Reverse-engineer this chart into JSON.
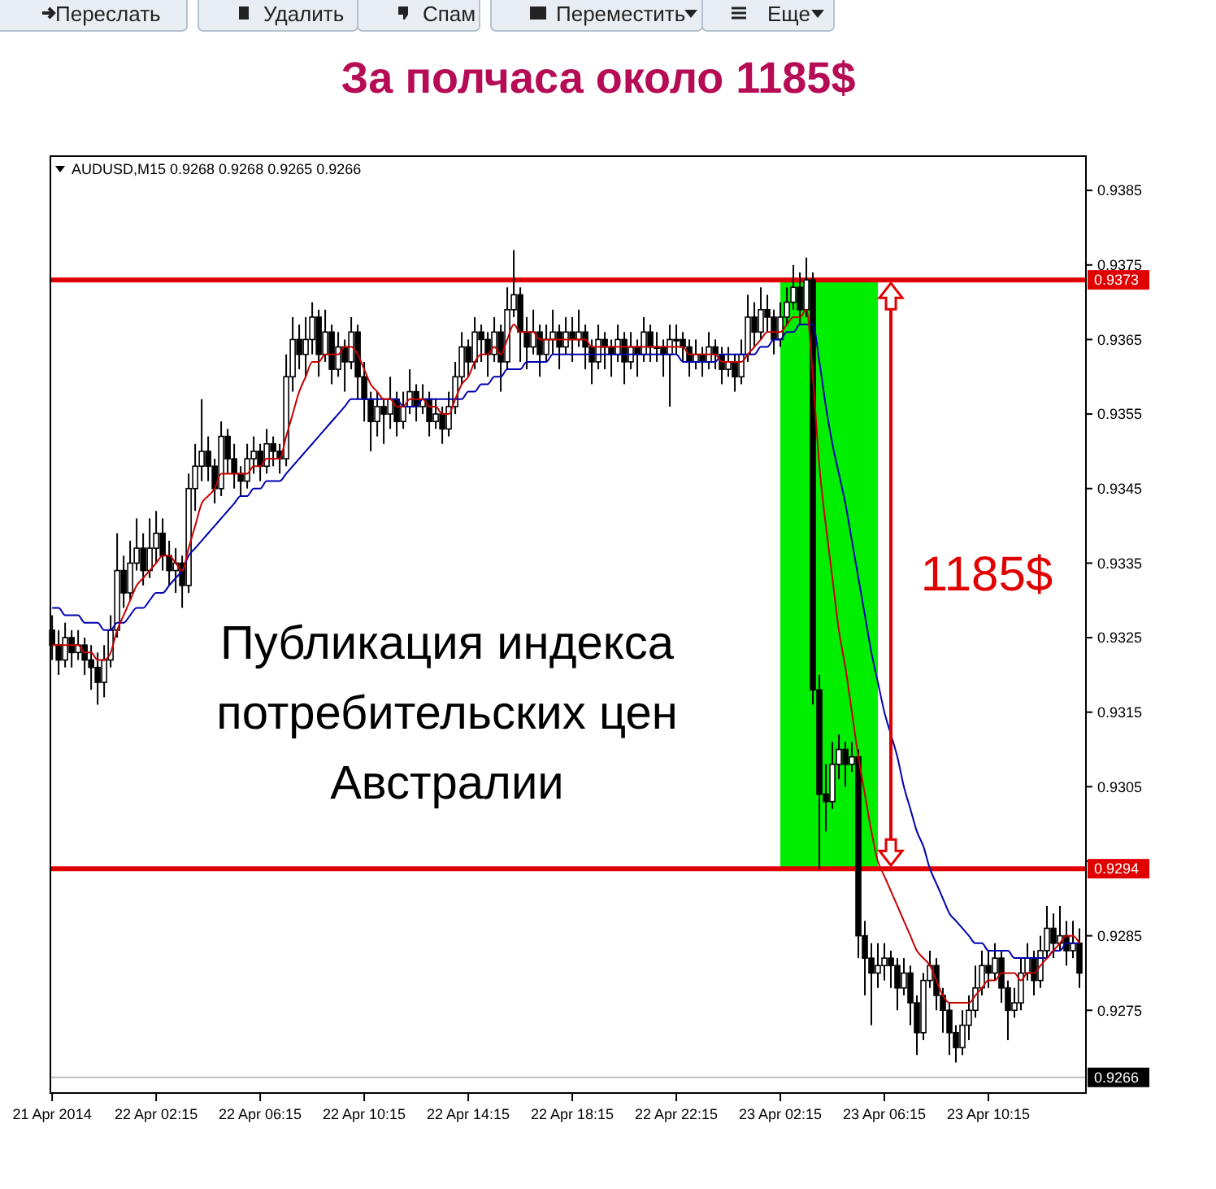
{
  "chart_data": {
    "type": "candlestick",
    "title": "За полчаса около 1185$",
    "annotations": [
      "Переслать",
      "Удалить",
      "Спам",
      "Переместить",
      "Еще",
      "AUDUSD,M15  0.9268 0.9268 0.9265 0.9266",
      "Публикация индекса\nпотребительских цен\nАвстралии",
      "1185$"
    ],
    "x": [
      "2014-04-21T22:15",
      "2014-04-21T22:30",
      "2014-04-21T22:45",
      "2014-04-21T23:00",
      "2014-04-21T23:15",
      "2014-04-21T23:30",
      "2014-04-21T23:45",
      "2014-04-22T00:00",
      "2014-04-22T00:15",
      "2014-04-22T00:30",
      "2014-04-22T00:45",
      "2014-04-22T01:00",
      "2014-04-22T01:15",
      "2014-04-22T01:30",
      "2014-04-22T01:45",
      "2014-04-22T02:00",
      "2014-04-22T02:15",
      "2014-04-22T02:30",
      "2014-04-22T02:45",
      "2014-04-22T03:00",
      "2014-04-22T03:15",
      "2014-04-22T03:30",
      "2014-04-22T03:45",
      "2014-04-22T04:00",
      "2014-04-22T04:15",
      "2014-04-22T04:30",
      "2014-04-22T04:45",
      "2014-04-22T05:00",
      "2014-04-22T05:15",
      "2014-04-22T05:30",
      "2014-04-22T05:45",
      "2014-04-22T06:00",
      "2014-04-22T06:15",
      "2014-04-22T06:30",
      "2014-04-22T06:45",
      "2014-04-22T07:00",
      "2014-04-22T07:15",
      "2014-04-22T07:30",
      "2014-04-22T07:45",
      "2014-04-22T08:00",
      "2014-04-22T08:15",
      "2014-04-22T08:30",
      "2014-04-22T08:45",
      "2014-04-22T09:00",
      "2014-04-22T09:15",
      "2014-04-22T09:30",
      "2014-04-22T09:45",
      "2014-04-22T10:00",
      "2014-04-22T10:15",
      "2014-04-22T10:30",
      "2014-04-22T10:45",
      "2014-04-22T11:00",
      "2014-04-22T11:15",
      "2014-04-22T11:30",
      "2014-04-22T11:45",
      "2014-04-22T12:00",
      "2014-04-22T12:15",
      "2014-04-22T12:30",
      "2014-04-22T12:45",
      "2014-04-22T13:00",
      "2014-04-22T13:15",
      "2014-04-22T13:30",
      "2014-04-22T13:45",
      "2014-04-22T14:00",
      "2014-04-22T14:15",
      "2014-04-22T14:30",
      "2014-04-22T14:45",
      "2014-04-22T15:00",
      "2014-04-22T15:15",
      "2014-04-22T15:30",
      "2014-04-22T15:45",
      "2014-04-22T16:00",
      "2014-04-22T16:15",
      "2014-04-22T16:30",
      "2014-04-22T16:45",
      "2014-04-22T17:00",
      "2014-04-22T17:15",
      "2014-04-22T17:30",
      "2014-04-22T17:45",
      "2014-04-22T18:00",
      "2014-04-22T18:15",
      "2014-04-22T18:30",
      "2014-04-22T18:45",
      "2014-04-22T19:00",
      "2014-04-22T19:15",
      "2014-04-22T19:30",
      "2014-04-22T19:45",
      "2014-04-22T20:00",
      "2014-04-22T20:15",
      "2014-04-22T20:30",
      "2014-04-22T20:45",
      "2014-04-22T21:00",
      "2014-04-22T21:15",
      "2014-04-22T21:30",
      "2014-04-22T21:45",
      "2014-04-22T22:00",
      "2014-04-22T22:15",
      "2014-04-22T22:30",
      "2014-04-22T22:45",
      "2014-04-22T23:00",
      "2014-04-22T23:15",
      "2014-04-22T23:30",
      "2014-04-22T23:45",
      "2014-04-23T00:00",
      "2014-04-23T00:15",
      "2014-04-23T00:30",
      "2014-04-23T00:45",
      "2014-04-23T01:00",
      "2014-04-23T01:15",
      "2014-04-23T01:30",
      "2014-04-23T01:45",
      "2014-04-23T02:00",
      "2014-04-23T02:15",
      "2014-04-23T02:30",
      "2014-04-23T02:45",
      "2014-04-23T03:00",
      "2014-04-23T03:15",
      "2014-04-23T03:30",
      "2014-04-23T03:45",
      "2014-04-23T04:00",
      "2014-04-23T04:15",
      "2014-04-23T04:30",
      "2014-04-23T04:45",
      "2014-04-23T05:00",
      "2014-04-23T05:15",
      "2014-04-23T05:30",
      "2014-04-23T05:45",
      "2014-04-23T06:00",
      "2014-04-23T06:15",
      "2014-04-23T06:30",
      "2014-04-23T06:45",
      "2014-04-23T07:00",
      "2014-04-23T07:15",
      "2014-04-23T07:30",
      "2014-04-23T07:45",
      "2014-04-23T08:00",
      "2014-04-23T08:15",
      "2014-04-23T08:30",
      "2014-04-23T08:45",
      "2014-04-23T09:00",
      "2014-04-23T09:15",
      "2014-04-23T09:30",
      "2014-04-23T09:45",
      "2014-04-23T10:00",
      "2014-04-23T10:15",
      "2014-04-23T10:30",
      "2014-04-23T10:45",
      "2014-04-23T11:00",
      "2014-04-23T11:15",
      "2014-04-23T11:30",
      "2014-04-23T11:45",
      "2014-04-23T12:00",
      "2014-04-23T12:15",
      "2014-04-23T12:30",
      "2014-04-23T12:45",
      "2014-04-23T13:00",
      "2014-04-23T13:15",
      "2014-04-23T13:30",
      "2014-04-23T13:45"
    ],
    "ohlc": [
      [
        0.9326,
        0.9328,
        0.9322,
        0.9324
      ],
      [
        0.9324,
        0.9326,
        0.932,
        0.9322
      ],
      [
        0.9322,
        0.9327,
        0.9321,
        0.9325
      ],
      [
        0.9325,
        0.9326,
        0.9321,
        0.9323
      ],
      [
        0.9323,
        0.9326,
        0.9322,
        0.9324
      ],
      [
        0.9324,
        0.9325,
        0.932,
        0.9322
      ],
      [
        0.9322,
        0.9324,
        0.9318,
        0.9321
      ],
      [
        0.9321,
        0.9323,
        0.9316,
        0.9319
      ],
      [
        0.9319,
        0.9324,
        0.9317,
        0.9322
      ],
      [
        0.9322,
        0.9328,
        0.9321,
        0.9326
      ],
      [
        0.9326,
        0.9339,
        0.9325,
        0.9334
      ],
      [
        0.9334,
        0.9336,
        0.9329,
        0.9331
      ],
      [
        0.9331,
        0.9338,
        0.933,
        0.9335
      ],
      [
        0.9335,
        0.9341,
        0.9334,
        0.9337
      ],
      [
        0.9337,
        0.9339,
        0.9332,
        0.9334
      ],
      [
        0.9334,
        0.9341,
        0.9333,
        0.9337
      ],
      [
        0.9337,
        0.9342,
        0.9335,
        0.9339
      ],
      [
        0.9339,
        0.9341,
        0.9334,
        0.9336
      ],
      [
        0.9336,
        0.9338,
        0.9332,
        0.9334
      ],
      [
        0.9334,
        0.9337,
        0.9331,
        0.9335
      ],
      [
        0.9335,
        0.9336,
        0.9329,
        0.9332
      ],
      [
        0.9332,
        0.9347,
        0.9331,
        0.9345
      ],
      [
        0.9345,
        0.9351,
        0.9342,
        0.9348
      ],
      [
        0.9348,
        0.9357,
        0.9346,
        0.935
      ],
      [
        0.935,
        0.9352,
        0.9346,
        0.9348
      ],
      [
        0.9348,
        0.9349,
        0.9343,
        0.9345
      ],
      [
        0.9345,
        0.9354,
        0.9344,
        0.9352
      ],
      [
        0.9352,
        0.9353,
        0.9347,
        0.9349
      ],
      [
        0.9349,
        0.9351,
        0.9345,
        0.9347
      ],
      [
        0.9347,
        0.9348,
        0.9344,
        0.9346
      ],
      [
        0.9346,
        0.9351,
        0.9345,
        0.9349
      ],
      [
        0.9349,
        0.9352,
        0.9347,
        0.935
      ],
      [
        0.935,
        0.9351,
        0.9346,
        0.9348
      ],
      [
        0.9348,
        0.9353,
        0.9347,
        0.9351
      ],
      [
        0.9351,
        0.9352,
        0.9348,
        0.935
      ],
      [
        0.935,
        0.9351,
        0.9347,
        0.9349
      ],
      [
        0.9349,
        0.9363,
        0.9348,
        0.936
      ],
      [
        0.936,
        0.9368,
        0.9358,
        0.9365
      ],
      [
        0.9365,
        0.9367,
        0.9361,
        0.9363
      ],
      [
        0.9363,
        0.9368,
        0.936,
        0.9365
      ],
      [
        0.9365,
        0.937,
        0.9363,
        0.9368
      ],
      [
        0.9368,
        0.9369,
        0.936,
        0.9363
      ],
      [
        0.9363,
        0.9369,
        0.9362,
        0.9366
      ],
      [
        0.9366,
        0.9367,
        0.9359,
        0.9361
      ],
      [
        0.9361,
        0.9366,
        0.936,
        0.9364
      ],
      [
        0.9364,
        0.9365,
        0.9358,
        0.9362
      ],
      [
        0.9362,
        0.9368,
        0.9361,
        0.9366
      ],
      [
        0.9366,
        0.9367,
        0.9357,
        0.936
      ],
      [
        0.936,
        0.9362,
        0.9354,
        0.9357
      ],
      [
        0.9357,
        0.9358,
        0.935,
        0.9354
      ],
      [
        0.9354,
        0.9358,
        0.9352,
        0.9356
      ],
      [
        0.9356,
        0.9357,
        0.9351,
        0.9355
      ],
      [
        0.9355,
        0.936,
        0.9353,
        0.9357
      ],
      [
        0.9357,
        0.9358,
        0.9352,
        0.9354
      ],
      [
        0.9354,
        0.9358,
        0.9353,
        0.9356
      ],
      [
        0.9356,
        0.9361,
        0.9355,
        0.9358
      ],
      [
        0.9358,
        0.9359,
        0.9354,
        0.9356
      ],
      [
        0.9356,
        0.9359,
        0.9355,
        0.9357
      ],
      [
        0.9357,
        0.9358,
        0.9352,
        0.9354
      ],
      [
        0.9354,
        0.9357,
        0.9353,
        0.9355
      ],
      [
        0.9355,
        0.9356,
        0.9351,
        0.9353
      ],
      [
        0.9353,
        0.9358,
        0.9352,
        0.9356
      ],
      [
        0.9356,
        0.9362,
        0.9355,
        0.936
      ],
      [
        0.936,
        0.9366,
        0.9359,
        0.9364
      ],
      [
        0.9364,
        0.9365,
        0.936,
        0.9362
      ],
      [
        0.9362,
        0.9368,
        0.9361,
        0.9366
      ],
      [
        0.9366,
        0.9367,
        0.9362,
        0.9365
      ],
      [
        0.9365,
        0.9366,
        0.936,
        0.9363
      ],
      [
        0.9363,
        0.9368,
        0.9362,
        0.9366
      ],
      [
        0.9366,
        0.9367,
        0.9358,
        0.9362
      ],
      [
        0.9362,
        0.9372,
        0.9361,
        0.9369
      ],
      [
        0.9369,
        0.9377,
        0.9368,
        0.9371
      ],
      [
        0.9371,
        0.9372,
        0.9362,
        0.9366
      ],
      [
        0.9366,
        0.9368,
        0.9361,
        0.9364
      ],
      [
        0.9364,
        0.9369,
        0.9363,
        0.9366
      ],
      [
        0.9366,
        0.9367,
        0.936,
        0.9363
      ],
      [
        0.9363,
        0.9367,
        0.9362,
        0.9365
      ],
      [
        0.9365,
        0.9369,
        0.9363,
        0.9366
      ],
      [
        0.9366,
        0.9367,
        0.9361,
        0.9364
      ],
      [
        0.9364,
        0.9368,
        0.9363,
        0.9366
      ],
      [
        0.9366,
        0.9368,
        0.9362,
        0.9365
      ],
      [
        0.9365,
        0.9369,
        0.9364,
        0.9366
      ],
      [
        0.9366,
        0.9367,
        0.9361,
        0.9364
      ],
      [
        0.9364,
        0.9365,
        0.9359,
        0.9362
      ],
      [
        0.9362,
        0.9367,
        0.9361,
        0.9365
      ],
      [
        0.9365,
        0.9366,
        0.9361,
        0.9364
      ],
      [
        0.9364,
        0.9365,
        0.936,
        0.9363
      ],
      [
        0.9363,
        0.9367,
        0.9362,
        0.9365
      ],
      [
        0.9365,
        0.9366,
        0.9359,
        0.9362
      ],
      [
        0.9362,
        0.9366,
        0.9361,
        0.9364
      ],
      [
        0.9364,
        0.9365,
        0.936,
        0.9363
      ],
      [
        0.9363,
        0.9368,
        0.9362,
        0.9366
      ],
      [
        0.9366,
        0.9367,
        0.9362,
        0.9364
      ],
      [
        0.9364,
        0.9366,
        0.9362,
        0.9364
      ],
      [
        0.9364,
        0.9365,
        0.936,
        0.9363
      ],
      [
        0.9363,
        0.9367,
        0.9356,
        0.9365
      ],
      [
        0.9365,
        0.9367,
        0.9363,
        0.9365
      ],
      [
        0.9365,
        0.9366,
        0.9362,
        0.9364
      ],
      [
        0.9364,
        0.9365,
        0.936,
        0.9362
      ],
      [
        0.9362,
        0.9365,
        0.9361,
        0.9363
      ],
      [
        0.9363,
        0.9364,
        0.936,
        0.9362
      ],
      [
        0.9362,
        0.9366,
        0.9361,
        0.9364
      ],
      [
        0.9364,
        0.9365,
        0.9361,
        0.9363
      ],
      [
        0.9363,
        0.9364,
        0.9359,
        0.9361
      ],
      [
        0.9361,
        0.9364,
        0.936,
        0.9362
      ],
      [
        0.9362,
        0.9363,
        0.9358,
        0.936
      ],
      [
        0.936,
        0.9365,
        0.9359,
        0.9363
      ],
      [
        0.9363,
        0.9371,
        0.9362,
        0.9368
      ],
      [
        0.9368,
        0.937,
        0.9364,
        0.9366
      ],
      [
        0.9366,
        0.9372,
        0.9365,
        0.9369
      ],
      [
        0.9369,
        0.9371,
        0.9366,
        0.9368
      ],
      [
        0.9368,
        0.9369,
        0.9363,
        0.9365
      ],
      [
        0.9365,
        0.937,
        0.9364,
        0.9368
      ],
      [
        0.9368,
        0.9372,
        0.9367,
        0.937
      ],
      [
        0.937,
        0.9375,
        0.9369,
        0.9372
      ],
      [
        0.9372,
        0.9374,
        0.9367,
        0.9369
      ],
      [
        0.9369,
        0.9376,
        0.9368,
        0.9373
      ],
      [
        0.9373,
        0.9374,
        0.9316,
        0.9318
      ],
      [
        0.9318,
        0.932,
        0.9294,
        0.9304
      ],
      [
        0.9304,
        0.9308,
        0.9299,
        0.9303
      ],
      [
        0.9303,
        0.9311,
        0.9302,
        0.9308
      ],
      [
        0.9308,
        0.9312,
        0.9306,
        0.931
      ],
      [
        0.931,
        0.9311,
        0.9305,
        0.9308
      ],
      [
        0.9308,
        0.9311,
        0.9307,
        0.9309
      ],
      [
        0.9309,
        0.931,
        0.9282,
        0.9285
      ],
      [
        0.9285,
        0.9287,
        0.9277,
        0.9282
      ],
      [
        0.9282,
        0.9284,
        0.9273,
        0.928
      ],
      [
        0.928,
        0.9284,
        0.9278,
        0.9281
      ],
      [
        0.9281,
        0.9284,
        0.9279,
        0.9282
      ],
      [
        0.9282,
        0.9283,
        0.9278,
        0.9281
      ],
      [
        0.9281,
        0.9282,
        0.9275,
        0.9278
      ],
      [
        0.9278,
        0.9282,
        0.9277,
        0.928
      ],
      [
        0.928,
        0.9281,
        0.9273,
        0.9276
      ],
      [
        0.9276,
        0.9277,
        0.9269,
        0.9272
      ],
      [
        0.9272,
        0.928,
        0.9271,
        0.9279
      ],
      [
        0.9279,
        0.9283,
        0.9278,
        0.9281
      ],
      [
        0.9281,
        0.9282,
        0.9275,
        0.9277
      ],
      [
        0.9277,
        0.9278,
        0.9272,
        0.9275
      ],
      [
        0.9275,
        0.9276,
        0.9269,
        0.9272
      ],
      [
        0.9272,
        0.9273,
        0.9268,
        0.927
      ],
      [
        0.927,
        0.9275,
        0.9269,
        0.9273
      ],
      [
        0.9273,
        0.9277,
        0.9271,
        0.9275
      ],
      [
        0.9275,
        0.9281,
        0.9274,
        0.9278
      ],
      [
        0.9278,
        0.9283,
        0.9277,
        0.9281
      ],
      [
        0.9281,
        0.9283,
        0.9278,
        0.928
      ],
      [
        0.928,
        0.9284,
        0.9279,
        0.9282
      ],
      [
        0.9282,
        0.9283,
        0.9276,
        0.9278
      ],
      [
        0.9278,
        0.9279,
        0.9271,
        0.9275
      ],
      [
        0.9275,
        0.9278,
        0.9274,
        0.9276
      ],
      [
        0.9276,
        0.9282,
        0.9275,
        0.928
      ],
      [
        0.928,
        0.9284,
        0.9279,
        0.9282
      ],
      [
        0.9282,
        0.9283,
        0.9277,
        0.9279
      ],
      [
        0.9279,
        0.9285,
        0.9278,
        0.9283
      ],
      [
        0.9283,
        0.9289,
        0.9282,
        0.9286
      ],
      [
        0.9286,
        0.9288,
        0.9282,
        0.9284
      ],
      [
        0.9284,
        0.9289,
        0.9283,
        0.9285
      ],
      [
        0.9285,
        0.9287,
        0.9281,
        0.9283
      ],
      [
        0.9283,
        0.9287,
        0.9282,
        0.9284
      ],
      [
        0.9284,
        0.9286,
        0.9278,
        0.928
      ]
    ],
    "series": [
      {
        "type": "line",
        "color": "#0000b0",
        "values": [
          0.9329,
          0.9329,
          0.9328,
          0.9328,
          0.9328,
          0.9327,
          0.9327,
          0.9327,
          0.9326,
          0.9326,
          0.9327,
          0.9327,
          0.9328,
          0.9329,
          0.9329,
          0.933,
          0.9331,
          0.9331,
          0.9332,
          0.9333,
          0.9334,
          0.9336,
          0.9337,
          0.9338,
          0.9339,
          0.934,
          0.9341,
          0.9342,
          0.9343,
          0.9344,
          0.9344,
          0.9345,
          0.9345,
          0.9346,
          0.9346,
          0.9346,
          0.9347,
          0.9348,
          0.9349,
          0.935,
          0.9351,
          0.9352,
          0.9353,
          0.9354,
          0.9355,
          0.9356,
          0.9357,
          0.9357,
          0.9357,
          0.9357,
          0.9357,
          0.9357,
          0.9357,
          0.9357,
          0.9356,
          0.9356,
          0.9356,
          0.9357,
          0.9357,
          0.9357,
          0.9357,
          0.9357,
          0.9357,
          0.9357,
          0.9358,
          0.9358,
          0.9359,
          0.9359,
          0.936,
          0.936,
          0.9361,
          0.9361,
          0.9361,
          0.9362,
          0.9362,
          0.9362,
          0.9362,
          0.9363,
          0.9363,
          0.9363,
          0.9363,
          0.9363,
          0.9363,
          0.9363,
          0.9363,
          0.9363,
          0.9363,
          0.9363,
          0.9363,
          0.9363,
          0.9363,
          0.9363,
          0.9363,
          0.9363,
          0.9363,
          0.9363,
          0.9363,
          0.9362,
          0.9362,
          0.9362,
          0.9362,
          0.9362,
          0.9362,
          0.9363,
          0.9363,
          0.9363,
          0.9363,
          0.9363,
          0.9363,
          0.9364,
          0.9364,
          0.9365,
          0.9365,
          0.9366,
          0.9366,
          0.9367,
          0.9367,
          0.9367,
          0.9362,
          0.9356,
          0.9351,
          0.9347,
          0.9343,
          0.9338,
          0.9333,
          0.9328,
          0.9323,
          0.9319,
          0.9315,
          0.9312,
          0.9309,
          0.9305,
          0.9302,
          0.9299,
          0.9297,
          0.9294,
          0.9292,
          0.929,
          0.9288,
          0.9287,
          0.9286,
          0.9285,
          0.9284,
          0.9284,
          0.9283,
          0.9283,
          0.9283,
          0.9283,
          0.9282,
          0.9282,
          0.9282,
          0.9282,
          0.9282,
          0.9282,
          0.9283,
          0.9283,
          0.9284,
          0.9284,
          0.9284
        ]
      },
      {
        "type": "line",
        "color": "#c80000",
        "values": [
          0.9324,
          0.9324,
          0.9324,
          0.9324,
          0.9324,
          0.9323,
          0.9323,
          0.9322,
          0.9322,
          0.9323,
          0.9326,
          0.9328,
          0.933,
          0.9332,
          0.9333,
          0.9334,
          0.9335,
          0.9336,
          0.9336,
          0.9335,
          0.9334,
          0.9337,
          0.934,
          0.9343,
          0.9344,
          0.9345,
          0.9347,
          0.9347,
          0.9347,
          0.9347,
          0.9347,
          0.9348,
          0.9348,
          0.9349,
          0.9349,
          0.9349,
          0.9352,
          0.9355,
          0.9358,
          0.936,
          0.9362,
          0.9362,
          0.9363,
          0.9363,
          0.9363,
          0.9364,
          0.9364,
          0.9363,
          0.9361,
          0.9359,
          0.9358,
          0.9357,
          0.9357,
          0.9356,
          0.9356,
          0.9357,
          0.9357,
          0.9357,
          0.9356,
          0.9356,
          0.9355,
          0.9355,
          0.9357,
          0.9359,
          0.936,
          0.9362,
          0.9363,
          0.9363,
          0.9364,
          0.9363,
          0.9365,
          0.9367,
          0.9366,
          0.9366,
          0.9366,
          0.9365,
          0.9365,
          0.9365,
          0.9365,
          0.9365,
          0.9365,
          0.9365,
          0.9365,
          0.9364,
          0.9364,
          0.9364,
          0.9364,
          0.9364,
          0.9364,
          0.9364,
          0.9364,
          0.9364,
          0.9364,
          0.9364,
          0.9364,
          0.9364,
          0.9364,
          0.9364,
          0.9363,
          0.9363,
          0.9363,
          0.9363,
          0.9363,
          0.9362,
          0.9362,
          0.9362,
          0.9362,
          0.9363,
          0.9364,
          0.9365,
          0.9366,
          0.9366,
          0.9366,
          0.9367,
          0.9368,
          0.9368,
          0.9369,
          0.936,
          0.9348,
          0.934,
          0.9333,
          0.9326,
          0.9321,
          0.9315,
          0.9309,
          0.9304,
          0.9299,
          0.9295,
          0.9293,
          0.9291,
          0.9289,
          0.9287,
          0.9285,
          0.9283,
          0.9282,
          0.9281,
          0.9279,
          0.9277,
          0.9276,
          0.9276,
          0.9276,
          0.9276,
          0.9277,
          0.9278,
          0.9279,
          0.9279,
          0.928,
          0.928,
          0.928,
          0.9279,
          0.928,
          0.928,
          0.9281,
          0.9282,
          0.9283,
          0.9284,
          0.9285,
          0.9285,
          0.9284
        ]
      }
    ],
    "xlim": [
      "2014-04-21T22:11",
      "2014-04-23T14:00"
    ],
    "xticks": [
      {
        "value": "2014-04-21T22:15",
        "label": "21 Apr 2014"
      },
      {
        "value": "2014-04-22T02:15",
        "label": "22 Apr 02:15"
      },
      {
        "value": "2014-04-22T06:15",
        "label": "22 Apr 06:15"
      },
      {
        "value": "2014-04-22T10:15",
        "label": "22 Apr 10:15"
      },
      {
        "value": "2014-04-22T14:15",
        "label": "22 Apr 14:15"
      },
      {
        "value": "2014-04-22T18:15",
        "label": "22 Apr 18:15"
      },
      {
        "value": "2014-04-22T22:15",
        "label": "22 Apr 22:15"
      },
      {
        "value": "2014-04-23T02:15",
        "label": "23 Apr 02:15"
      },
      {
        "value": "2014-04-23T06:15",
        "label": "23 Apr 06:15"
      },
      {
        "value": "2014-04-23T10:15",
        "label": "23 Apr 10:15"
      }
    ],
    "ylim": [
      0.92639,
      0.93896
    ],
    "yticks": [
      0.9275,
      0.9285,
      {
        "value": 0.9295,
        "label": null
      },
      0.9305,
      0.9315,
      0.9325,
      0.9335,
      0.9345,
      0.9355,
      0.9365,
      0.9375,
      0.9385
    ],
    "ref_lines": [
      {
        "axis": "y",
        "value": 0.9373,
        "label": "0.9373",
        "color": "#e00000"
      },
      {
        "axis": "y",
        "value": 0.9294,
        "label": "0.9294",
        "color": "#e00000"
      },
      {
        "axis": "y",
        "value": 0.9266,
        "label": "0.9266",
        "color": "#c0c0c0"
      }
    ],
    "bands": [
      {
        "axis": "x",
        "from": "2014-04-23T02:15",
        "to": "2014-04-23T06:00",
        "color": "#00ee00"
      }
    ],
    "grid": false
  }
}
